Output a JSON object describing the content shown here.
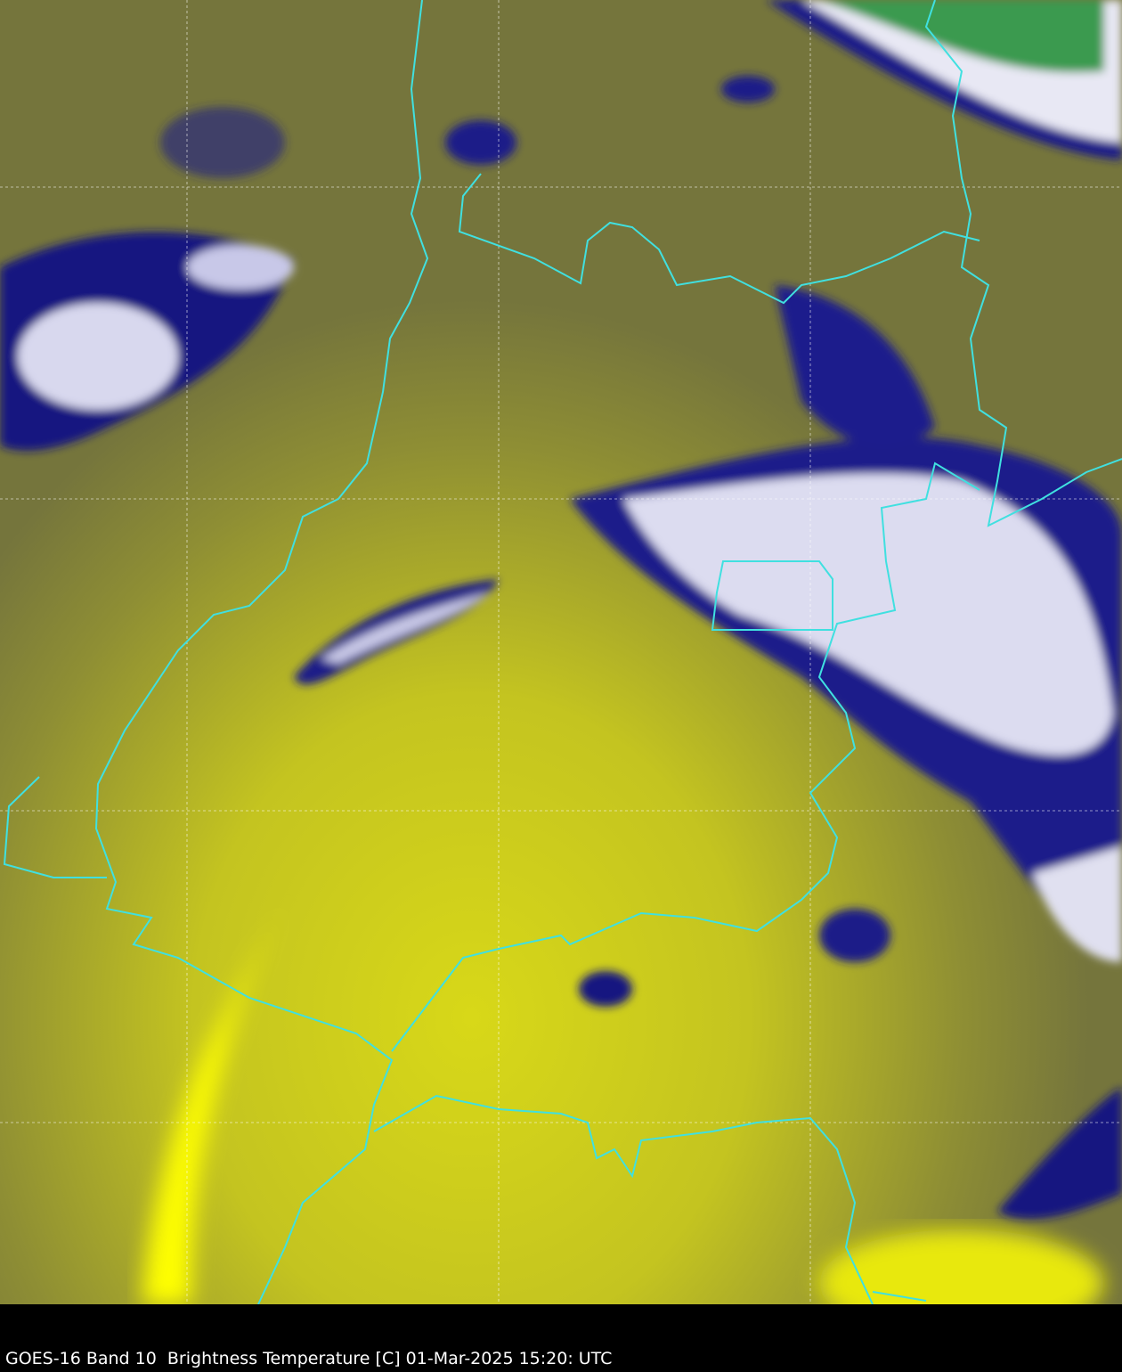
{
  "caption": "GOES-16 Band 10  Brightness Temperature [C] 01-Mar-2025 15:20: UTC",
  "colors": {
    "background_warm": "#7a7a3c",
    "warmest": "#ffff00",
    "mid": "#b8b828",
    "cold_cloud": "#101080",
    "coldest_cloud": "#ffffff",
    "very_cold": "#2e9a4a",
    "borders": "#40e0e0",
    "gridlines": "#ffffff",
    "caption_bar": "#000000"
  },
  "layers": {
    "gridlines": "dashed",
    "borders": "cyan political boundaries"
  }
}
